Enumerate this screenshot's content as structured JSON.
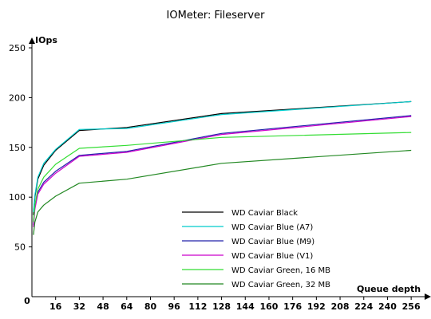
{
  "chart_data": {
    "type": "line",
    "title": "IOMeter: Fileserver",
    "xlabel": "Queue depth",
    "ylabel": "IOps",
    "ylim": [
      0,
      250
    ],
    "xlim": [
      0,
      264
    ],
    "grid": false,
    "legend_placement": "bottom-center",
    "x_ticks": [
      0,
      16,
      32,
      48,
      64,
      80,
      96,
      112,
      128,
      144,
      160,
      176,
      192,
      208,
      224,
      240,
      256
    ],
    "y_ticks": [
      0,
      50,
      100,
      150,
      200,
      250
    ],
    "x": [
      1,
      2,
      4,
      8,
      16,
      32,
      64,
      128,
      256
    ],
    "series": [
      {
        "name": "WD Caviar Black",
        "color": "#000000",
        "values": [
          82,
          100,
          118,
          132,
          147,
          167,
          170,
          184,
          196
        ]
      },
      {
        "name": "WD Caviar Blue (A7)",
        "color": "#00cccc",
        "values": [
          85,
          102,
          120,
          134,
          148,
          168,
          169,
          183,
          196
        ]
      },
      {
        "name": "WD Caviar Blue (M9)",
        "color": "#2222aa",
        "values": [
          72,
          90,
          105,
          115,
          126,
          142,
          146,
          164,
          182
        ]
      },
      {
        "name": "WD Caviar Blue (V1)",
        "color": "#cc00cc",
        "values": [
          70,
          88,
          103,
          113,
          124,
          141,
          145,
          163,
          181
        ]
      },
      {
        "name": "WD Caviar Green, 16 MB",
        "color": "#33dd33",
        "values": [
          75,
          92,
          108,
          120,
          133,
          149,
          152,
          160,
          165
        ]
      },
      {
        "name": "WD Caviar Green, 32 MB",
        "color": "#228822",
        "values": [
          62,
          75,
          85,
          92,
          101,
          114,
          118,
          134,
          147
        ]
      }
    ]
  }
}
